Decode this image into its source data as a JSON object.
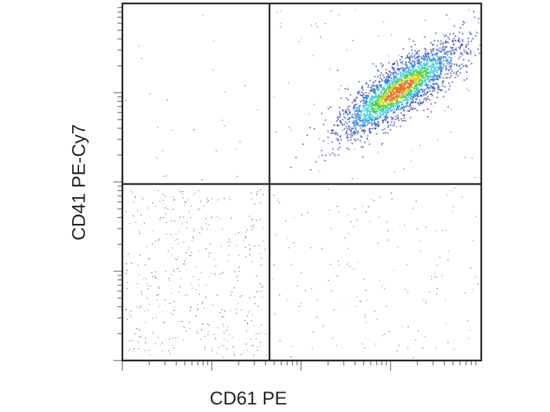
{
  "chart_data": {
    "type": "scatter",
    "subtype": "flow-cytometry density dot plot",
    "title": "",
    "xlabel": "CD61 PE",
    "ylabel": "CD41 PE-Cy7",
    "x_scale": "log",
    "y_scale": "log",
    "tick_labels": "none",
    "grid": false,
    "quadrant_gates": true,
    "density_colors": [
      "#1a2fa0",
      "#2f7fe0",
      "#3fd0e8",
      "#34d04a",
      "#c8d020",
      "#e07020"
    ],
    "populations": [
      {
        "quadrant": "upper-right",
        "density": "high",
        "shape": "diagonal elongated cluster"
      },
      {
        "quadrant": "lower-left",
        "density": "sparse"
      },
      {
        "quadrant": "lower-right",
        "density": "sparse"
      },
      {
        "quadrant": "upper-left",
        "density": "very sparse"
      }
    ]
  }
}
